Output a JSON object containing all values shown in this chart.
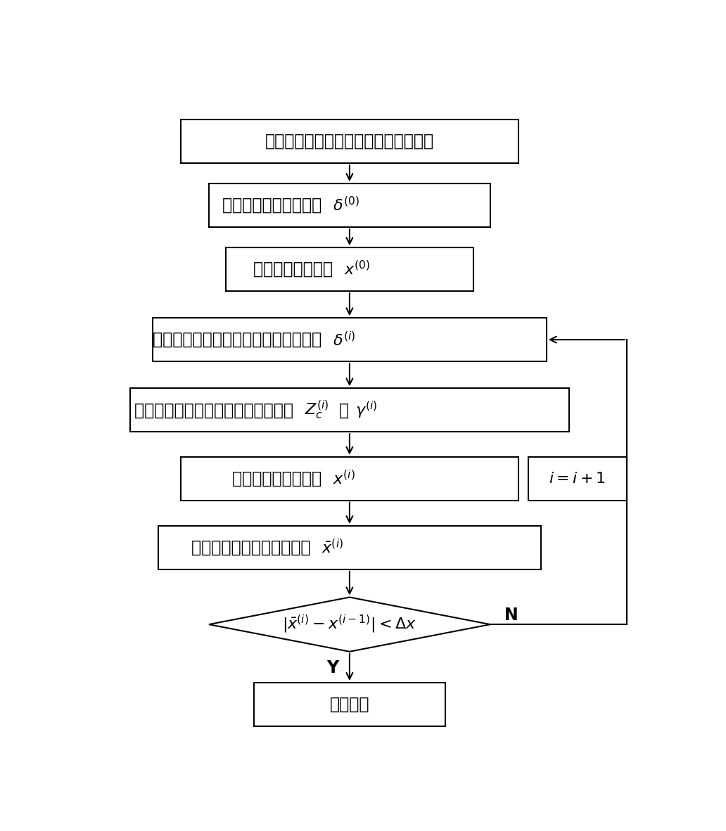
{
  "bg_color": "#ffffff",
  "box_color": "#ffffff",
  "box_edge": "#000000",
  "arrow_color": "#000000",
  "box1_text": "运用小波模极大值法检测两端故障起点",
  "box2_text": "计算两端非同步角初值 ",
  "box2_math": "\\delta^{(0)}",
  "box3_text": "计算故障距离初值 ",
  "box3_math": "x^{(0)}",
  "box4_text": "利用故障距离计算两端非同步角修正值 ",
  "box4_math": "\\delta^{(i)}",
  "box5_text": "利用两端非同步角计算线路在线参数 ",
  "box5_math1": "Z_c^{(i)}",
  "box5_sep": "、",
  "box5_math2": "\\gamma^{(i)}",
  "box6_text": "计算故障距离修正值 ",
  "box6_math": "x^{(i)}",
  "box7_text": "对测距结果进行优化，得到 ",
  "box7_math": "\\bar{x}^{(i)}",
  "diamond_math": "|\\bar{x}^{(i)}-x^{(i-1)}| < \\Delta x",
  "box8_text": "测距结束",
  "boxi_math": "i=i+1",
  "label_Y": "Y",
  "label_N": "N",
  "lw": 1.5,
  "fs": 17,
  "fs_math": 16
}
